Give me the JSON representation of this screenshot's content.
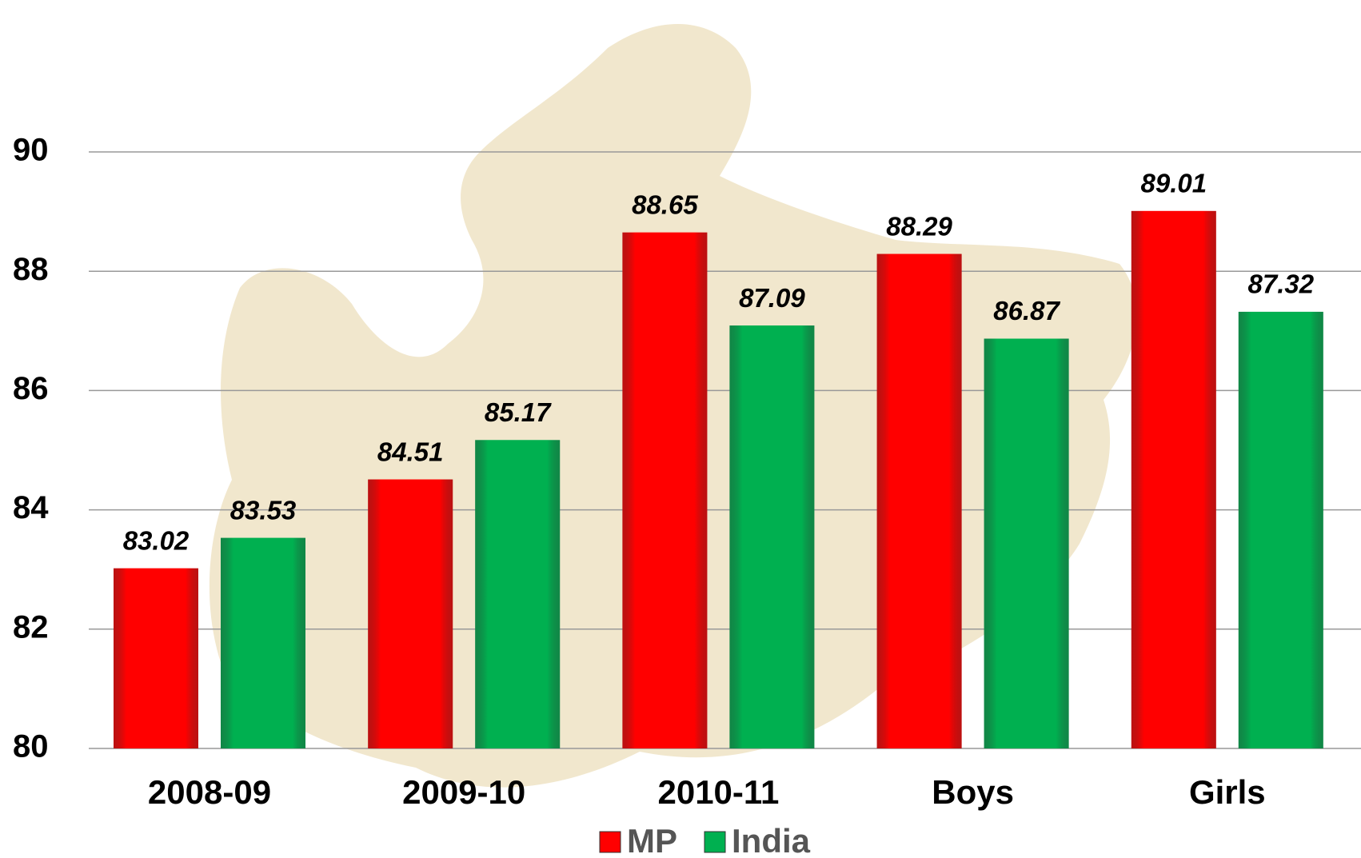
{
  "chart_data": {
    "type": "bar",
    "categories": [
      "2008-09",
      "2009-10",
      "2010-11",
      "Boys",
      "Girls"
    ],
    "series": [
      {
        "name": "MP",
        "color": "#ff0000",
        "values": [
          83.02,
          84.51,
          88.65,
          88.29,
          89.01
        ]
      },
      {
        "name": "India",
        "color": "#00b050",
        "values": [
          83.53,
          85.17,
          87.09,
          86.87,
          87.32
        ]
      }
    ],
    "ylim": [
      80,
      90
    ],
    "yticks": [
      80,
      82,
      84,
      86,
      88,
      90
    ],
    "grid": true,
    "legend": "bottom"
  }
}
